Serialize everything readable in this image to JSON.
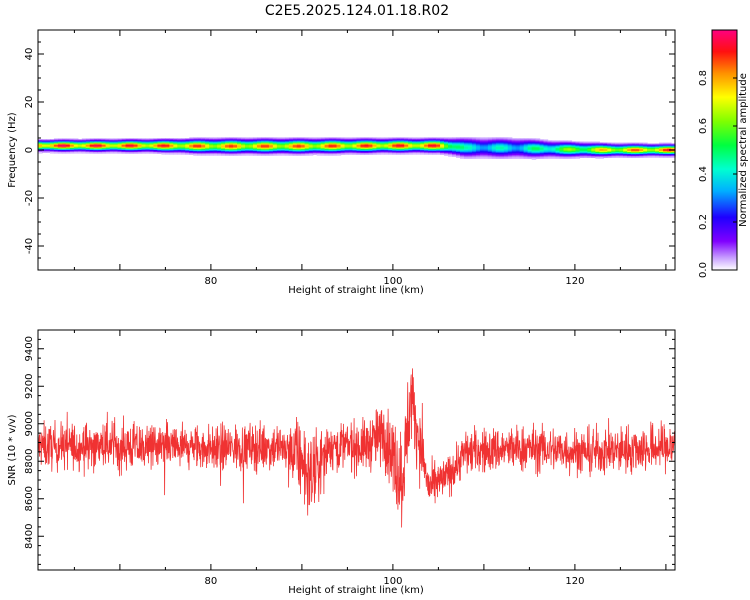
{
  "figure": {
    "title": "C2E5.2025.124.01.18.R02"
  },
  "chart_data": [
    {
      "type": "heatmap",
      "xlabel": "Height of straight line (km)",
      "ylabel": "Frequency (Hz)",
      "xlim": [
        61,
        131
      ],
      "ylim": [
        -50,
        50
      ],
      "xticks": [
        80,
        100,
        120
      ],
      "yticks": [
        -40,
        -20,
        0,
        20,
        40
      ],
      "colorbar": {
        "label": "Normalized spectral amplitude",
        "range": [
          0,
          1
        ],
        "ticks": [
          "0.0",
          "0.2",
          "0.4",
          "0.6",
          "0.8"
        ]
      },
      "ridge": [
        {
          "x": 62,
          "freq": 1.8,
          "width": 2.0,
          "amp": 1.0
        },
        {
          "x": 74,
          "freq": 1.8,
          "width": 2.2,
          "amp": 0.95
        },
        {
          "x": 80,
          "freq": 1.6,
          "width": 2.6,
          "amp": 0.9
        },
        {
          "x": 90,
          "freq": 1.6,
          "width": 2.6,
          "amp": 0.9
        },
        {
          "x": 100,
          "freq": 1.8,
          "width": 2.4,
          "amp": 0.95
        },
        {
          "x": 105,
          "freq": 1.8,
          "width": 2.4,
          "amp": 0.95
        },
        {
          "x": 108,
          "freq": 1.0,
          "width": 3.5,
          "amp": 0.45
        },
        {
          "x": 114,
          "freq": 0.8,
          "width": 3.5,
          "amp": 0.45
        },
        {
          "x": 118,
          "freq": 0.3,
          "width": 2.8,
          "amp": 0.6
        },
        {
          "x": 124,
          "freq": 0.0,
          "width": 2.2,
          "amp": 0.85
        },
        {
          "x": 131,
          "freq": 0.0,
          "width": 2.0,
          "amp": 0.95
        }
      ]
    },
    {
      "type": "line",
      "xlabel": "Height of straight line (km)",
      "ylabel": "SNR (10 * v/v)",
      "xlim": [
        61,
        131
      ],
      "ylim": [
        8220,
        9500
      ],
      "xticks": [
        80,
        100,
        120
      ],
      "yticks": [
        8400,
        8600,
        8800,
        9000,
        9200,
        9400
      ],
      "series": [
        {
          "color": "#f03232",
          "envelope": [
            {
              "x": 61,
              "mean": 8880,
              "amp": 160
            },
            {
              "x": 70,
              "mean": 8880,
              "amp": 170
            },
            {
              "x": 80,
              "mean": 8870,
              "amp": 160
            },
            {
              "x": 88,
              "mean": 8880,
              "amp": 170
            },
            {
              "x": 90,
              "mean": 8800,
              "amp": 260
            },
            {
              "x": 91,
              "mean": 8700,
              "amp": 300
            },
            {
              "x": 93,
              "mean": 8880,
              "amp": 170
            },
            {
              "x": 97,
              "mean": 8880,
              "amp": 180
            },
            {
              "x": 99,
              "mean": 8950,
              "amp": 220
            },
            {
              "x": 101,
              "mean": 8700,
              "amp": 350
            },
            {
              "x": 102,
              "mean": 9150,
              "amp": 300
            },
            {
              "x": 103,
              "mean": 8880,
              "amp": 220
            },
            {
              "x": 104,
              "mean": 8650,
              "amp": 150
            },
            {
              "x": 106,
              "mean": 8720,
              "amp": 140
            },
            {
              "x": 108,
              "mean": 8850,
              "amp": 160
            },
            {
              "x": 115,
              "mean": 8870,
              "amp": 160
            },
            {
              "x": 122,
              "mean": 8850,
              "amp": 160
            },
            {
              "x": 131,
              "mean": 8880,
              "amp": 170
            }
          ]
        }
      ]
    }
  ]
}
